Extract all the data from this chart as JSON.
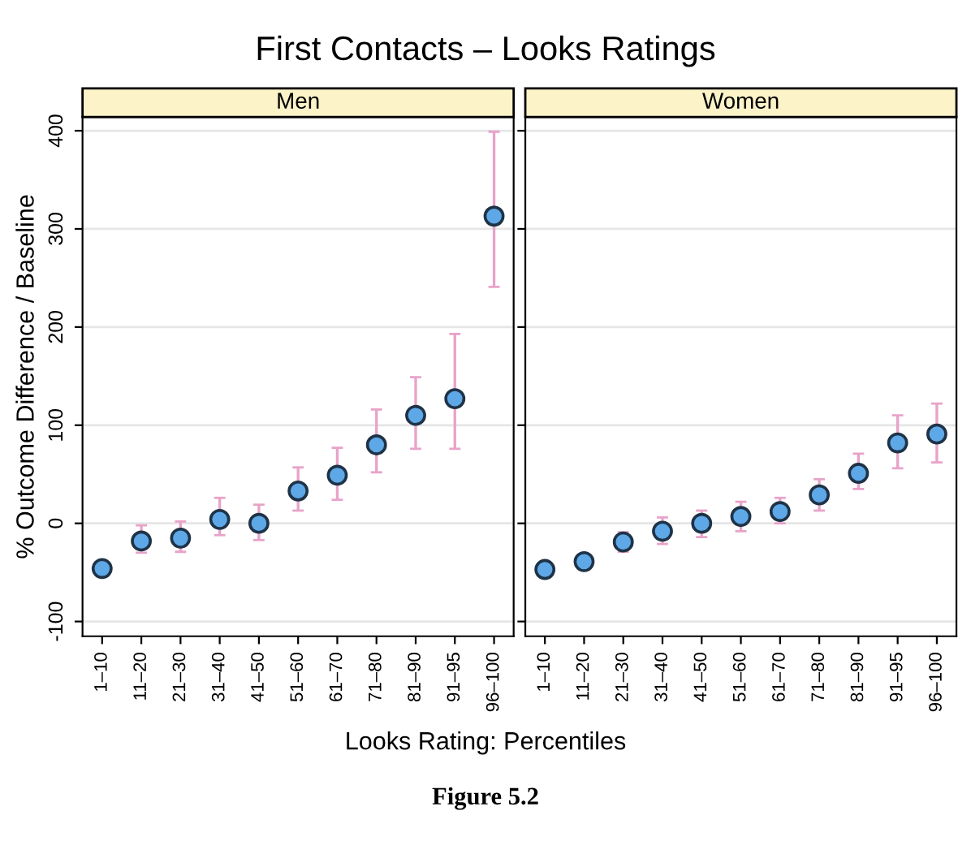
{
  "chart_data": [
    {
      "type": "scatter",
      "title": "First Contacts – Looks Ratings",
      "subtitle": "Men",
      "xlabel": "Looks Rating: Percentiles",
      "ylabel": "% Outcome Difference / Baseline",
      "annotations": [
        "Figure 5.2"
      ],
      "categories": [
        "1–10",
        "11–20",
        "21–30",
        "31–40",
        "41–50",
        "51–60",
        "61–70",
        "71–80",
        "81–90",
        "91–95",
        "96–100"
      ],
      "series": [
        {
          "color": "#5ea8e8",
          "values": [
            -46,
            -18,
            -15,
            4,
            0,
            33,
            49,
            80,
            110,
            127,
            313
          ],
          "errors": [
            [
              -52,
              -38
            ],
            [
              -30,
              -2
            ],
            [
              -29,
              2
            ],
            [
              -12,
              26
            ],
            [
              -17,
              19
            ],
            [
              13,
              57
            ],
            [
              24,
              77
            ],
            [
              52,
              116
            ],
            [
              76,
              149
            ],
            [
              76,
              193
            ],
            [
              241,
              399
            ]
          ]
        }
      ],
      "ylim": [
        -115,
        414
      ],
      "yticks": [
        -100,
        0,
        100,
        200,
        300,
        400
      ],
      "grid": "y",
      "marker": "circle",
      "legend": false
    },
    {
      "type": "scatter",
      "subtitle": "Women",
      "categories": [
        "1–10",
        "11–20",
        "21–30",
        "31–40",
        "41–50",
        "51–60",
        "61–70",
        "71–80",
        "81–90",
        "91–95",
        "96–100"
      ],
      "series": [
        {
          "color": "#5ea8e8",
          "values": [
            -47,
            -39,
            -19,
            -8,
            0,
            7,
            12,
            29,
            51,
            82,
            91
          ],
          "errors": [
            null,
            null,
            [
              -29,
              -9
            ],
            [
              -21,
              6
            ],
            [
              -14,
              13
            ],
            [
              -8,
              22
            ],
            [
              0,
              26
            ],
            [
              13,
              45
            ],
            [
              35,
              71
            ],
            [
              56,
              110
            ],
            [
              62,
              122
            ]
          ]
        }
      ],
      "ylim": [
        -115,
        414
      ],
      "yticks": [
        -100,
        0,
        100,
        200,
        300,
        400
      ],
      "grid": "y",
      "marker": "circle",
      "legend": false,
      "tick_labels": "x"
    }
  ]
}
